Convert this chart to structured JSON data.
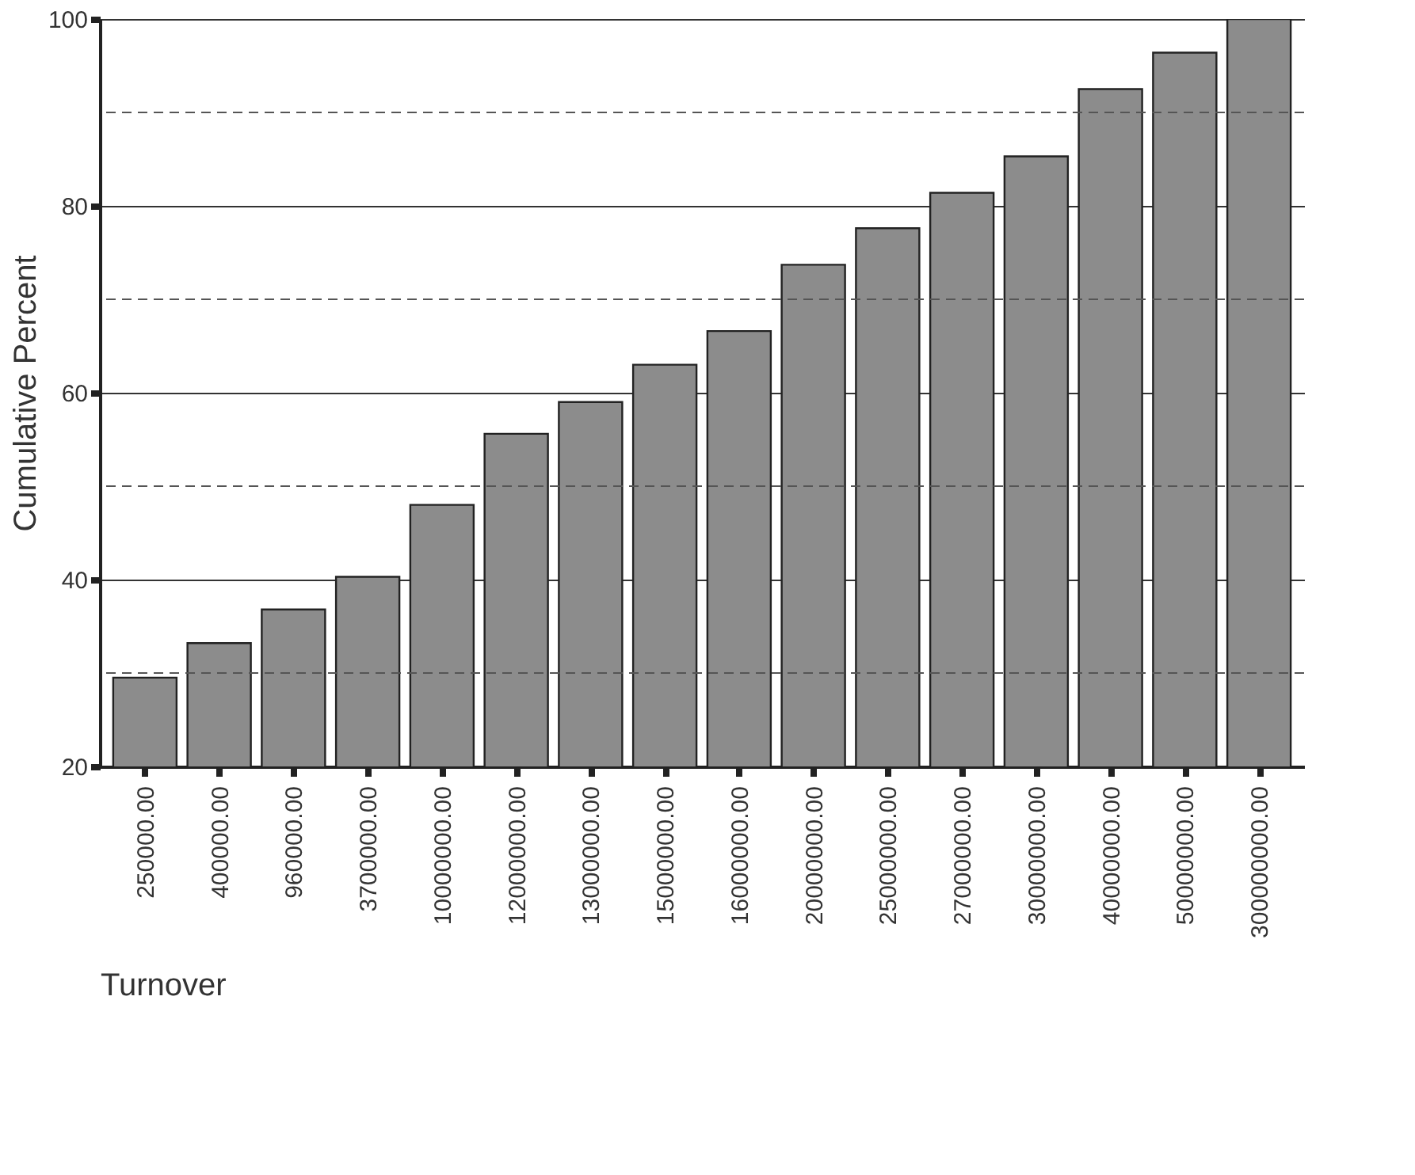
{
  "chart_data": {
    "type": "bar",
    "xlabel": "Turnover",
    "ylabel": "Cumulative Percent",
    "categories": [
      "250000.00",
      "400000.00",
      "960000.00",
      "3700000.00",
      "10000000.00",
      "12000000.00",
      "13000000.00",
      "15000000.00",
      "16000000.00",
      "20000000.00",
      "25000000.00",
      "27000000.00",
      "30000000.00",
      "40000000.00",
      "50000000.00",
      "300000000.00"
    ],
    "values": [
      29.5,
      33.2,
      36.8,
      40.3,
      48.0,
      55.6,
      59.0,
      63.0,
      66.6,
      73.7,
      77.6,
      81.4,
      85.3,
      92.5,
      96.4,
      100
    ],
    "color": "#8c8c8c",
    "ylim": [
      20,
      100
    ],
    "yticks": [
      20,
      40,
      60,
      80,
      100
    ],
    "grid": "y",
    "ref_lines": [
      {
        "axis": "y",
        "value": 30,
        "line_style": "dashed",
        "color": "#555555"
      },
      {
        "axis": "y",
        "value": 50,
        "line_style": "dashed",
        "color": "#555555"
      },
      {
        "axis": "y",
        "value": 70,
        "line_style": "dashed",
        "color": "#555555"
      },
      {
        "axis": "y",
        "value": 90,
        "line_style": "dashed",
        "color": "#555555"
      }
    ]
  }
}
